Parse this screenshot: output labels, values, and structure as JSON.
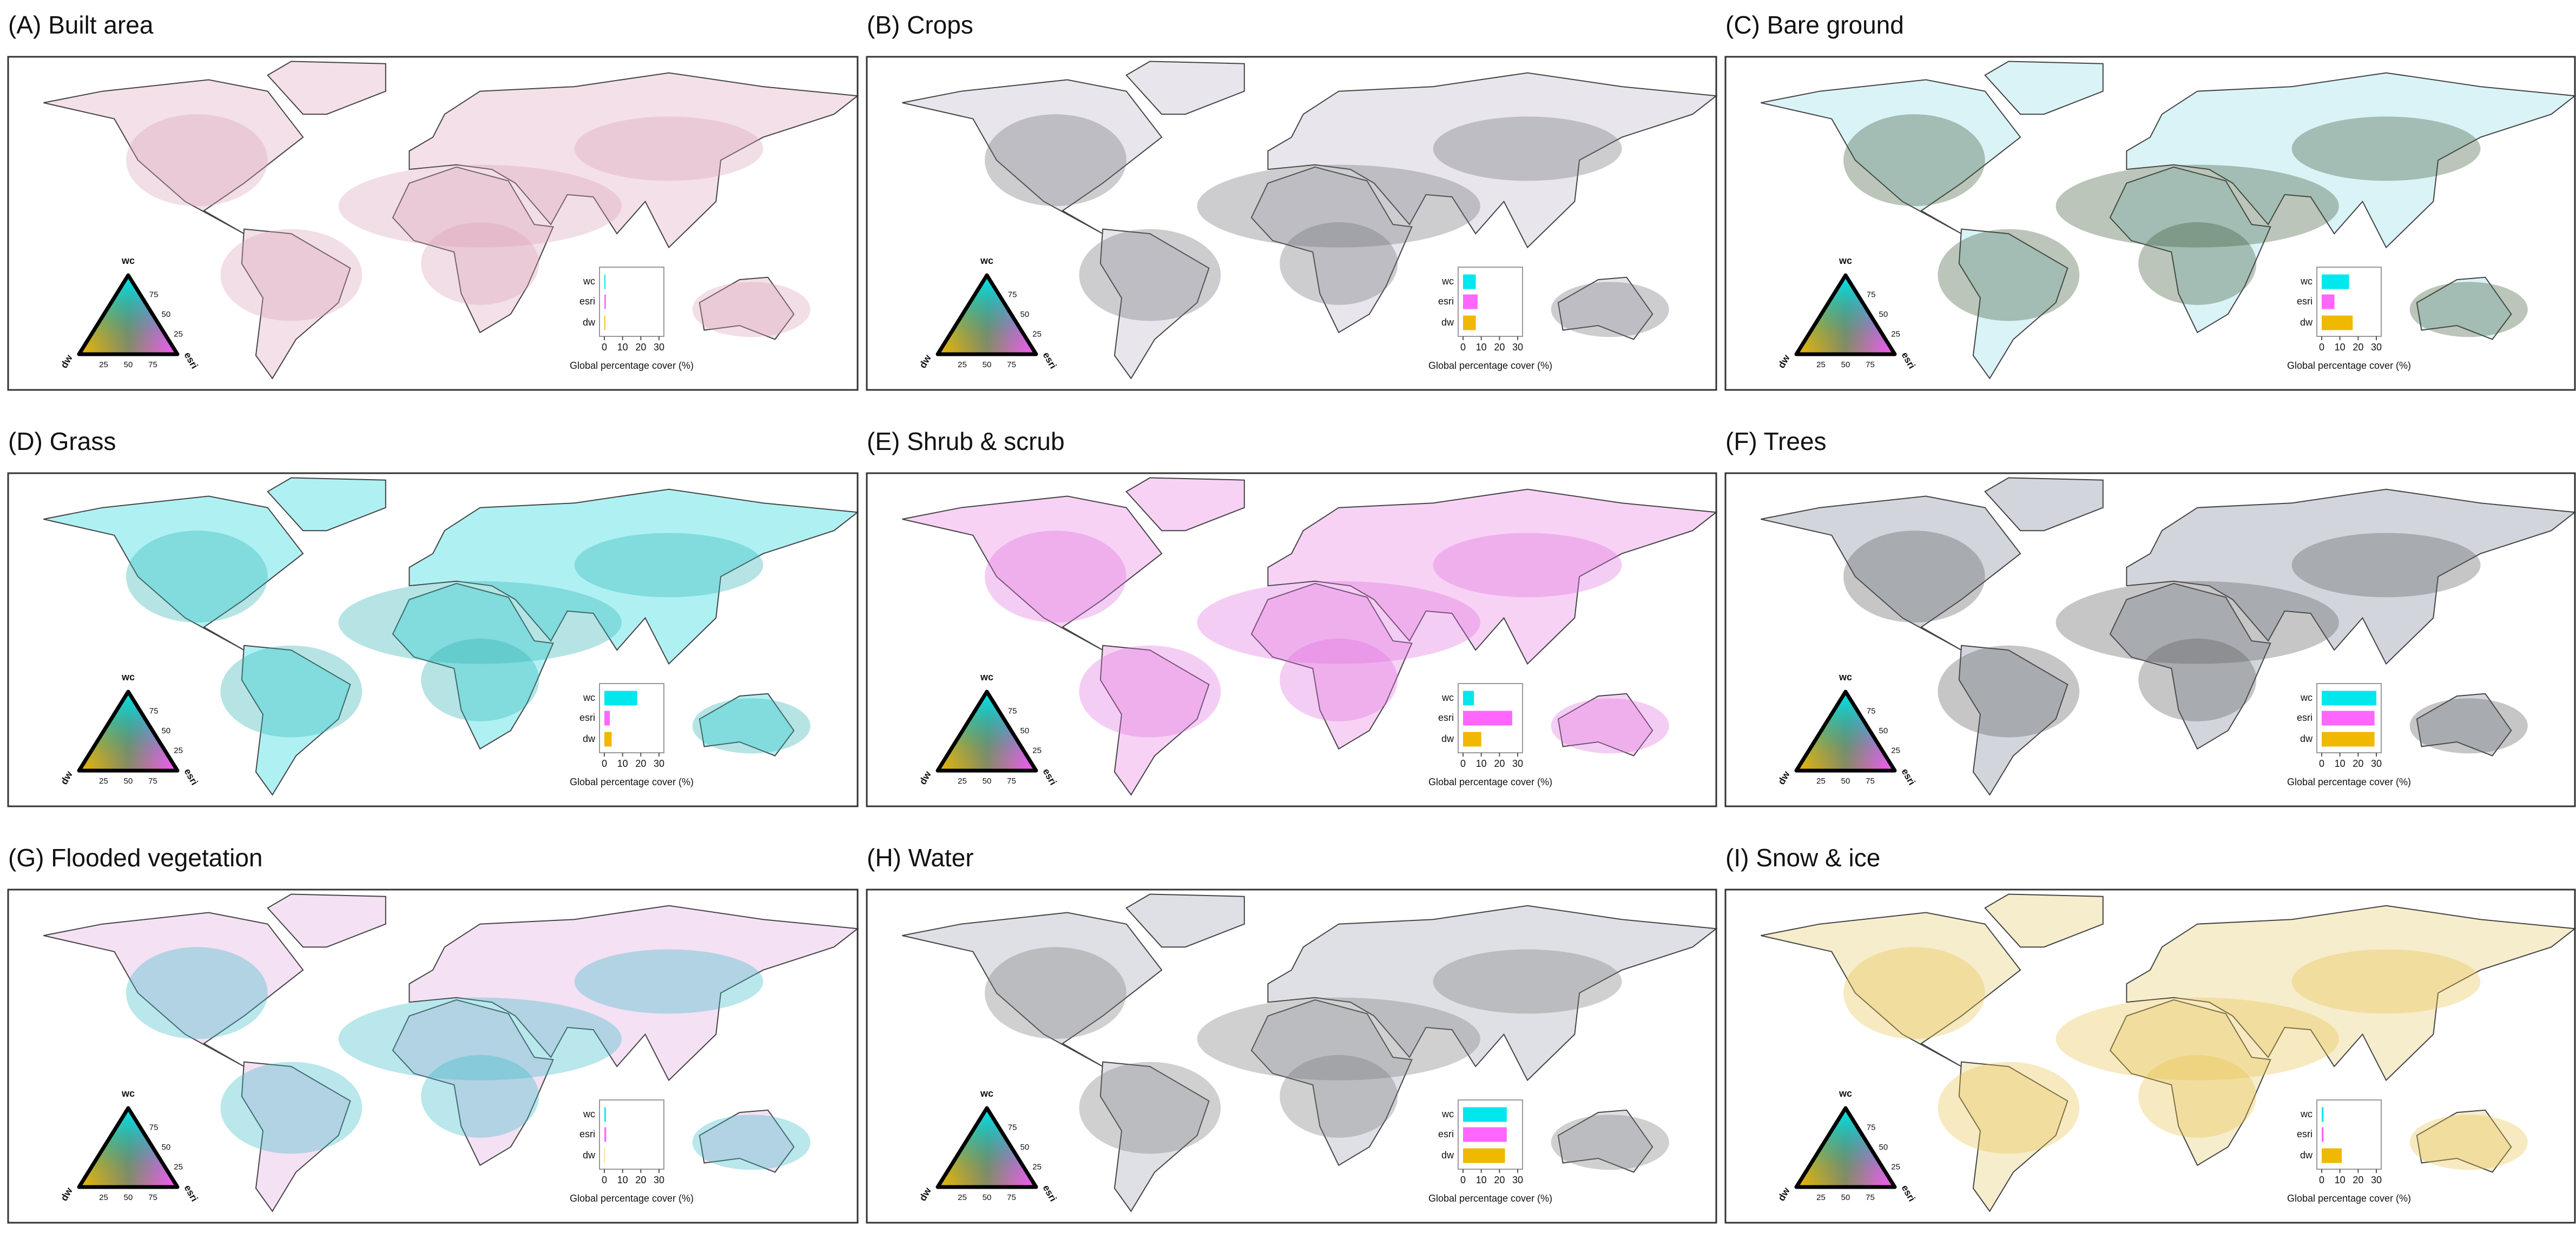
{
  "chart_data": [
    {
      "type": "bar",
      "title": "(A) Built area",
      "categories": [
        "wc",
        "esri",
        "dw"
      ],
      "values": [
        0.6,
        0.8,
        0.5
      ],
      "colors": [
        "#00e8ee",
        "#ff66ff",
        "#f0b800"
      ],
      "xlim": [
        0,
        30
      ],
      "xticks": [
        0,
        10,
        20,
        30
      ],
      "xlabel": "Global percentage cover (%)"
    },
    {
      "type": "bar",
      "title": "(B) Crops",
      "categories": [
        "wc",
        "esri",
        "dw"
      ],
      "values": [
        7,
        8,
        7
      ],
      "colors": [
        "#00e8ee",
        "#ff66ff",
        "#f0b800"
      ],
      "xlim": [
        0,
        30
      ],
      "xticks": [
        0,
        10,
        20,
        30
      ],
      "xlabel": "Global percentage cover (%)"
    },
    {
      "type": "bar",
      "title": "(C) Bare ground",
      "categories": [
        "wc",
        "esri",
        "dw"
      ],
      "values": [
        15,
        7,
        17
      ],
      "colors": [
        "#00e8ee",
        "#ff66ff",
        "#f0b800"
      ],
      "xlim": [
        0,
        30
      ],
      "xticks": [
        0,
        10,
        20,
        30
      ],
      "xlabel": "Global percentage cover (%)"
    },
    {
      "type": "bar",
      "title": "(D) Grass",
      "categories": [
        "wc",
        "esri",
        "dw"
      ],
      "values": [
        18,
        3,
        4
      ],
      "colors": [
        "#00e8ee",
        "#ff66ff",
        "#f0b800"
      ],
      "xlim": [
        0,
        30
      ],
      "xticks": [
        0,
        10,
        20,
        30
      ],
      "xlabel": "Global percentage cover (%)"
    },
    {
      "type": "bar",
      "title": "(E) Shrub & scrub",
      "categories": [
        "wc",
        "esri",
        "dw"
      ],
      "values": [
        6,
        27,
        10
      ],
      "colors": [
        "#00e8ee",
        "#ff66ff",
        "#f0b800"
      ],
      "xlim": [
        0,
        30
      ],
      "xticks": [
        0,
        10,
        20,
        30
      ],
      "xlabel": "Global percentage cover (%)"
    },
    {
      "type": "bar",
      "title": "(F) Trees",
      "categories": [
        "wc",
        "esri",
        "dw"
      ],
      "values": [
        30,
        29,
        29
      ],
      "colors": [
        "#00e8ee",
        "#ff66ff",
        "#f0b800"
      ],
      "xlim": [
        0,
        30
      ],
      "xticks": [
        0,
        10,
        20,
        30
      ],
      "xlabel": "Global percentage cover (%)"
    },
    {
      "type": "bar",
      "title": "(G) Flooded vegetation",
      "categories": [
        "wc",
        "esri",
        "dw"
      ],
      "values": [
        0.8,
        1,
        0.2
      ],
      "colors": [
        "#00e8ee",
        "#ff66ff",
        "#f0b800"
      ],
      "xlim": [
        0,
        30
      ],
      "xticks": [
        0,
        10,
        20,
        30
      ],
      "xlabel": "Global percentage cover (%)"
    },
    {
      "type": "bar",
      "title": "(H) Water",
      "categories": [
        "wc",
        "esri",
        "dw"
      ],
      "values": [
        24,
        24,
        23
      ],
      "colors": [
        "#00e8ee",
        "#ff66ff",
        "#f0b800"
      ],
      "xlim": [
        0,
        30
      ],
      "xticks": [
        0,
        10,
        20,
        30
      ],
      "xlabel": "Global percentage cover (%)"
    },
    {
      "type": "bar",
      "title": "(I) Snow & ice",
      "categories": [
        "wc",
        "esri",
        "dw"
      ],
      "values": [
        1,
        1,
        11
      ],
      "colors": [
        "#00e8ee",
        "#ff66ff",
        "#f0b800"
      ],
      "xlim": [
        0,
        30
      ],
      "xticks": [
        0,
        10,
        20,
        30
      ],
      "xlabel": "Global percentage cover (%)"
    }
  ],
  "ternary": {
    "vertices": [
      "wc",
      "dw",
      "esri"
    ],
    "ticks": [
      25,
      50,
      75
    ]
  }
}
